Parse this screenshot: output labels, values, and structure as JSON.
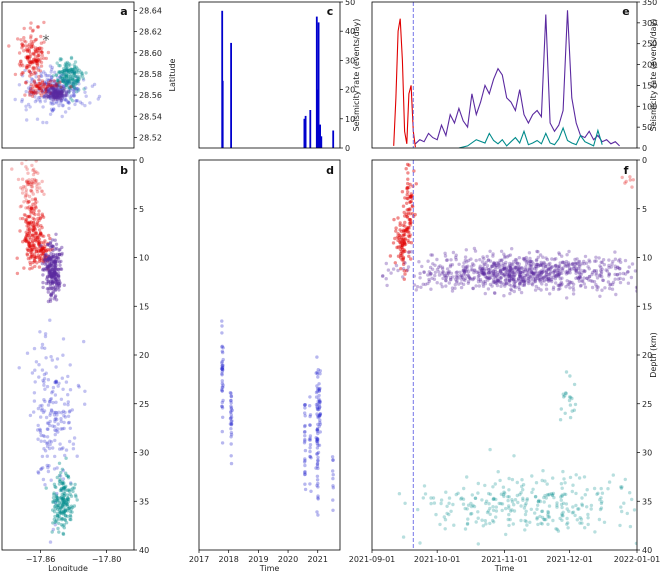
{
  "figure": {
    "colors": {
      "shallow": "#e00000",
      "mid": "#5b2aa0",
      "deep_blue": "#3232d2",
      "deep_teal": "#008b8b",
      "rate_blue": "#0000cd",
      "dashed": "#6464e6"
    }
  },
  "chart_data": [
    {
      "id": "a",
      "label": "a",
      "type": "scatter",
      "title": "",
      "xlabel": "",
      "ylabel": "Latitude",
      "xlim": [
        -17.895,
        -17.775
      ],
      "ylim": [
        28.51,
        28.648
      ],
      "xticks": [],
      "xticklabels": [],
      "yticks": [
        28.52,
        28.54,
        28.56,
        28.58,
        28.6,
        28.62,
        28.64
      ],
      "yticklabels": [
        "28.52",
        "28.54",
        "28.56",
        "28.58",
        "28.60",
        "28.62",
        "28.64"
      ],
      "star": {
        "x": -17.855,
        "y": 28.612,
        "symbol": "*"
      },
      "clusters": [
        {
          "name": "deep_blue",
          "color": "#3232d2",
          "n": 260,
          "cx": -17.846,
          "cy": 28.565,
          "sx": 0.014,
          "sy": 0.01,
          "opacity": 0.28
        },
        {
          "name": "deep_teal",
          "color": "#008b8b",
          "n": 170,
          "cx": -17.835,
          "cy": 28.578,
          "sx": 0.006,
          "sy": 0.007,
          "opacity": 0.35
        },
        {
          "name": "shallow",
          "color": "#e00000",
          "n": 150,
          "cx": -17.868,
          "cy": 28.598,
          "sx": 0.006,
          "sy": 0.012,
          "opacity": 0.35
        },
        {
          "name": "shallow_trail",
          "color": "#e00000",
          "n": 70,
          "cx": -17.858,
          "cy": 28.568,
          "sx": 0.008,
          "sy": 0.004,
          "opacity": 0.35
        },
        {
          "name": "mid",
          "color": "#5b2aa0",
          "n": 120,
          "cx": -17.846,
          "cy": 28.561,
          "sx": 0.004,
          "sy": 0.003,
          "opacity": 0.4
        }
      ]
    },
    {
      "id": "b",
      "label": "b",
      "type": "scatter",
      "title": "",
      "xlabel": "Longitude",
      "ylabel": "",
      "xlim": [
        -17.895,
        -17.775
      ],
      "ylim": [
        40,
        0
      ],
      "xticks": [
        -17.86,
        -17.8
      ],
      "xticklabels": [
        "−17.86",
        "−17.80"
      ],
      "yticks": [
        0,
        5,
        10,
        15,
        20,
        25,
        30,
        35,
        40
      ],
      "yticklabels": [
        "0",
        "5",
        "10",
        "15",
        "20",
        "25",
        "30",
        "35",
        "40"
      ],
      "clusters": [
        {
          "name": "shallow_top",
          "color": "#e00000",
          "n": 70,
          "cx": -17.87,
          "cy": 2.5,
          "sx": 0.006,
          "sy": 1.4,
          "opacity": 0.25
        },
        {
          "name": "shallow",
          "color": "#e00000",
          "n": 170,
          "cx": -17.867,
          "cy": 7.5,
          "sx": 0.005,
          "sy": 1.8,
          "opacity": 0.4
        },
        {
          "name": "shallow_side",
          "color": "#e00000",
          "n": 60,
          "cx": -17.858,
          "cy": 9.3,
          "sx": 0.005,
          "sy": 0.6,
          "opacity": 0.45
        },
        {
          "name": "mid",
          "color": "#5b2aa0",
          "n": 240,
          "cx": -17.849,
          "cy": 11.4,
          "sx": 0.004,
          "sy": 1.3,
          "opacity": 0.45
        },
        {
          "name": "deep_blue",
          "color": "#3232d2",
          "n": 190,
          "cx": -17.849,
          "cy": 26.5,
          "sx": 0.011,
          "sy": 3.8,
          "opacity": 0.3
        },
        {
          "name": "deep_teal",
          "color": "#008b8b",
          "n": 180,
          "cx": -17.84,
          "cy": 35.0,
          "sx": 0.005,
          "sy": 1.4,
          "opacity": 0.4
        }
      ]
    },
    {
      "id": "c",
      "label": "c",
      "type": "bar",
      "title": "",
      "xlabel": "",
      "ylabel": "Seismicity rate (events/day)",
      "xlim": [
        2017,
        2021.75
      ],
      "ylim": [
        0,
        50
      ],
      "xticks": [],
      "xticklabels": [],
      "yticks": [
        0,
        10,
        20,
        30,
        40,
        50
      ],
      "yticklabels": [
        "0",
        "10",
        "20",
        "30",
        "40",
        "50"
      ],
      "color": "#0000cd",
      "x": [
        2017.78,
        2017.8,
        2018.08,
        2020.55,
        2020.59,
        2020.75,
        2020.97,
        2021.0,
        2021.03,
        2021.08,
        2021.12,
        2021.52
      ],
      "values": [
        47,
        23,
        36,
        10,
        11,
        13,
        45,
        20,
        43,
        8,
        4,
        6
      ]
    },
    {
      "id": "d",
      "label": "d",
      "type": "scatter",
      "title": "",
      "xlabel": "Time",
      "ylabel": "",
      "xlim": [
        2017,
        2021.75
      ],
      "ylim": [
        40,
        0
      ],
      "xticks": [
        2017,
        2018,
        2019,
        2020,
        2021
      ],
      "xticklabels": [
        "2017",
        "2018",
        "2019",
        "2020",
        "2021"
      ],
      "yticks": [],
      "yticklabels": [],
      "clusters": [
        {
          "name": "burst_2017",
          "color": "#3232d2",
          "n": 40,
          "cx": 2017.79,
          "cy": 22.0,
          "sx": 0.012,
          "sy": 2.4,
          "opacity": 0.35
        },
        {
          "name": "burst_2018",
          "color": "#3232d2",
          "n": 30,
          "cx": 2018.08,
          "cy": 26.5,
          "sx": 0.012,
          "sy": 1.4,
          "opacity": 0.35
        },
        {
          "name": "burst_2020a",
          "color": "#3232d2",
          "n": 25,
          "cx": 2020.57,
          "cy": 29.0,
          "sx": 0.015,
          "sy": 2.0,
          "opacity": 0.35
        },
        {
          "name": "burst_2020b",
          "color": "#3232d2",
          "n": 18,
          "cx": 2020.75,
          "cy": 29.5,
          "sx": 0.015,
          "sy": 2.0,
          "opacity": 0.35
        },
        {
          "name": "burst_2021a",
          "color": "#3232d2",
          "n": 60,
          "cx": 2020.99,
          "cy": 28.0,
          "sx": 0.02,
          "sy": 3.2,
          "opacity": 0.35
        },
        {
          "name": "burst_2021b",
          "color": "#3232d2",
          "n": 30,
          "cx": 2021.06,
          "cy": 25.0,
          "sx": 0.015,
          "sy": 2.0,
          "opacity": 0.35
        },
        {
          "name": "burst_2021c",
          "color": "#3232d2",
          "n": 10,
          "cx": 2021.52,
          "cy": 33.0,
          "sx": 0.015,
          "sy": 2.0,
          "opacity": 0.35
        }
      ]
    },
    {
      "id": "e",
      "label": "e",
      "type": "line",
      "title": "",
      "xlabel": "",
      "ylabel": "Seismicity rate (events/day)",
      "xlim": [
        0,
        122
      ],
      "ylim": [
        0,
        350
      ],
      "x_unit": "days since 2021-09-01",
      "xticks": [],
      "xticklabels": [],
      "yticks": [
        0,
        50,
        100,
        150,
        200,
        250,
        300,
        350
      ],
      "yticklabels": [
        "0",
        "50",
        "100",
        "150",
        "200",
        "250",
        "300",
        "350"
      ],
      "vline": {
        "x": 19,
        "style": "dashed",
        "color": "#6464e6"
      },
      "series": [
        {
          "name": "shallow",
          "color": "#e00000",
          "x": [
            10,
            11,
            12,
            13,
            14,
            15,
            16,
            17,
            18,
            19,
            20
          ],
          "y": [
            5,
            120,
            280,
            310,
            210,
            40,
            10,
            130,
            150,
            40,
            2
          ]
        },
        {
          "name": "mid",
          "color": "#5b2aa0",
          "x": [
            20,
            22,
            24,
            26,
            28,
            30,
            32,
            34,
            36,
            38,
            40,
            42,
            44,
            46,
            48,
            50,
            52,
            54,
            56,
            58,
            60,
            62,
            64,
            66,
            68,
            70,
            72,
            74,
            76,
            78,
            80,
            82,
            84,
            86,
            88,
            90,
            92,
            94,
            96,
            98,
            100,
            102,
            104,
            106,
            108,
            110,
            112,
            114
          ],
          "y": [
            10,
            20,
            15,
            35,
            25,
            20,
            55,
            30,
            80,
            60,
            95,
            65,
            50,
            130,
            80,
            110,
            150,
            130,
            165,
            190,
            175,
            120,
            110,
            90,
            140,
            80,
            60,
            80,
            90,
            75,
            320,
            60,
            40,
            55,
            90,
            330,
            120,
            60,
            30,
            25,
            40,
            20,
            30,
            15,
            20,
            10,
            15,
            5
          ]
        },
        {
          "name": "deep_teal",
          "color": "#008b8b",
          "x": [
            40,
            44,
            48,
            52,
            54,
            56,
            58,
            60,
            62,
            64,
            66,
            68,
            70,
            72,
            74,
            76,
            78,
            80,
            82,
            84,
            86,
            88,
            90,
            92,
            94,
            96,
            98,
            100,
            102,
            104,
            106
          ],
          "y": [
            0,
            5,
            20,
            12,
            35,
            18,
            10,
            20,
            5,
            15,
            25,
            12,
            40,
            8,
            12,
            18,
            10,
            35,
            12,
            8,
            22,
            48,
            18,
            12,
            8,
            30,
            15,
            10,
            5,
            42,
            8
          ]
        }
      ]
    },
    {
      "id": "f",
      "label": "f",
      "type": "scatter",
      "title": "",
      "xlabel": "Time",
      "ylabel": "Depth (km)",
      "xlim": [
        0,
        122
      ],
      "ylim": [
        40,
        0
      ],
      "x_unit": "days since 2021-09-01",
      "xticks": [
        0,
        30,
        61,
        91,
        122
      ],
      "xticklabels": [
        "2021-09-01",
        "2021-10-01",
        "2021-11-01",
        "2021-12-01",
        "2022-01-01"
      ],
      "yticks": [
        0,
        5,
        10,
        15,
        20,
        25,
        30,
        35,
        40
      ],
      "yticklabels": [
        "0",
        "5",
        "10",
        "15",
        "20",
        "25",
        "30",
        "35",
        "40"
      ],
      "vline": {
        "x": 19,
        "style": "dashed",
        "color": "#6464e6"
      },
      "clusters": [
        {
          "name": "shallow_early",
          "color": "#e00000",
          "n": 90,
          "cx": 14.0,
          "cy": 8.5,
          "sx": 2.0,
          "sy": 1.3,
          "opacity": 0.45
        },
        {
          "name": "shallow_upper",
          "color": "#e00000",
          "n": 60,
          "cx": 17.5,
          "cy": 4.0,
          "sx": 1.2,
          "sy": 2.0,
          "opacity": 0.45
        },
        {
          "name": "shallow_late",
          "color": "#e00000",
          "n": 8,
          "cx": 117,
          "cy": 2.6,
          "sx": 3.5,
          "sy": 0.8,
          "opacity": 0.3
        },
        {
          "name": "mid_band",
          "color": "#5b2aa0",
          "n": 900,
          "cx": 70,
          "cy": 11.6,
          "sx": 26,
          "sy": 0.9,
          "opacity": 0.35
        },
        {
          "name": "deep_teal_band",
          "color": "#008b8b",
          "n": 300,
          "cx": 72,
          "cy": 35.3,
          "sx": 24,
          "sy": 1.5,
          "opacity": 0.28
        },
        {
          "name": "deep_teal_scatter",
          "color": "#008b8b",
          "n": 20,
          "cx": 90,
          "cy": 24.5,
          "sx": 2.0,
          "sy": 1.0,
          "opacity": 0.3
        }
      ]
    }
  ]
}
